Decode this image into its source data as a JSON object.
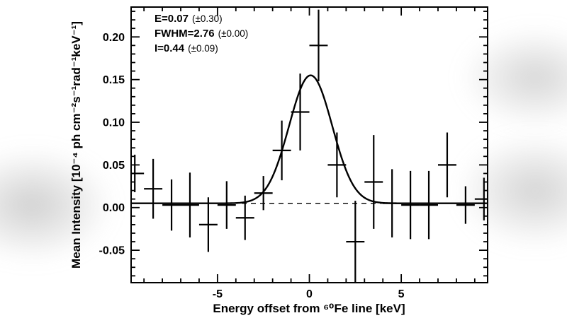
{
  "page": {
    "background": "#ffffff",
    "accent_color": "#000000"
  },
  "chart_data": {
    "type": "scatter",
    "title": "",
    "xlabel": "Energy offset from ⁶⁰Fe line [keV]",
    "ylabel": "Mean Intensity [10⁻⁴ ph cm⁻²s⁻¹rad⁻¹keV⁻¹]",
    "xlim": [
      -9.7,
      9.7
    ],
    "ylim": [
      -0.088,
      0.235
    ],
    "xtick_values": [
      -5,
      0,
      5
    ],
    "xtick_labels": [
      "-5",
      "0",
      "5"
    ],
    "x_minor_step": 1,
    "ytick_values": [
      -0.05,
      0,
      0.05,
      0.1,
      0.15,
      0.2
    ],
    "ytick_labels": [
      "-0.05",
      "0.00",
      "0.05",
      "0.10",
      "0.15",
      "0.20"
    ],
    "y_minor_step": 0.01,
    "grid": false,
    "legend": false,
    "line_color": "#000000",
    "baseline": 0.005,
    "fit": {
      "type": "gaussian",
      "center": 0.07,
      "fwhm": 2.76,
      "amplitude": 0.15,
      "offset": 0.005
    },
    "annotation": [
      {
        "value": "E=0.07",
        "err": "(±0.30)"
      },
      {
        "value": "FWHM=2.76",
        "err": "(±0.00)"
      },
      {
        "value": "I=0.44",
        "err": "(±0.09)"
      }
    ],
    "points": [
      {
        "x": -9.5,
        "y": 0.04,
        "yerr": 0.022,
        "xerr": 0.5
      },
      {
        "x": -8.5,
        "y": 0.022,
        "yerr": 0.035,
        "xerr": 0.5
      },
      {
        "x": -7.5,
        "y": 0.003,
        "yerr": 0.03,
        "xerr": 0.5
      },
      {
        "x": -6.5,
        "y": 0.003,
        "yerr": 0.038,
        "xerr": 0.5
      },
      {
        "x": -5.5,
        "y": -0.02,
        "yerr": 0.032,
        "xerr": 0.5
      },
      {
        "x": -4.5,
        "y": 0.003,
        "yerr": 0.028,
        "xerr": 0.5
      },
      {
        "x": -3.5,
        "y": -0.012,
        "yerr": 0.026,
        "xerr": 0.5
      },
      {
        "x": -2.5,
        "y": 0.017,
        "yerr": 0.02,
        "xerr": 0.5
      },
      {
        "x": -1.5,
        "y": 0.067,
        "yerr": 0.035,
        "xerr": 0.5
      },
      {
        "x": -0.5,
        "y": 0.112,
        "yerr": 0.045,
        "xerr": 0.5
      },
      {
        "x": 0.5,
        "y": 0.19,
        "yerr": 0.042,
        "xerr": 0.5
      },
      {
        "x": 1.5,
        "y": 0.05,
        "yerr": 0.038,
        "xerr": 0.5
      },
      {
        "x": 2.5,
        "y": -0.04,
        "yerr": 0.048,
        "xerr": 0.5
      },
      {
        "x": 3.5,
        "y": 0.03,
        "yerr": 0.055,
        "xerr": 0.5
      },
      {
        "x": 4.5,
        "y": 0.005,
        "yerr": 0.04,
        "xerr": 0.5
      },
      {
        "x": 5.5,
        "y": 0.003,
        "yerr": 0.04,
        "xerr": 0.5
      },
      {
        "x": 6.5,
        "y": 0.003,
        "yerr": 0.04,
        "xerr": 0.5
      },
      {
        "x": 7.5,
        "y": 0.05,
        "yerr": 0.038,
        "xerr": 0.5
      },
      {
        "x": 8.5,
        "y": 0.003,
        "yerr": 0.022,
        "xerr": 0.5
      },
      {
        "x": 9.5,
        "y": 0.01,
        "yerr": 0.025,
        "xerr": 0.5
      }
    ]
  }
}
